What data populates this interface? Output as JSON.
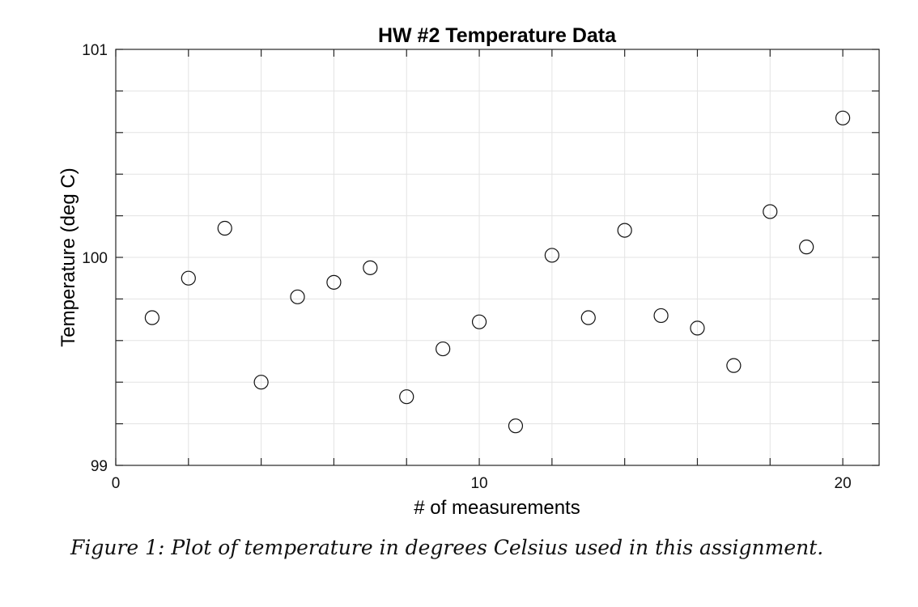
{
  "chart_data": {
    "type": "scatter",
    "title": "HW #2 Temperature Data",
    "xlabel": "# of measurements",
    "ylabel": "Temperature (deg C)",
    "xlim": [
      0,
      21
    ],
    "ylim": [
      99,
      101
    ],
    "xticks": [
      0,
      2,
      4,
      6,
      8,
      10,
      12,
      14,
      16,
      18,
      20
    ],
    "xtick_labels": [
      "0",
      "",
      "",
      "",
      "",
      "10",
      "",
      "",
      "",
      "",
      "20"
    ],
    "yticks": [
      99,
      99.2,
      99.4,
      99.6,
      99.8,
      100,
      100.2,
      100.4,
      100.6,
      100.8,
      101
    ],
    "ytick_labels": [
      "99",
      "",
      "",
      "",
      "",
      "100",
      "",
      "",
      "",
      "",
      "101"
    ],
    "grid": true,
    "marker": "open-circle",
    "x": [
      1,
      2,
      3,
      4,
      5,
      6,
      7,
      8,
      9,
      10,
      11,
      12,
      13,
      14,
      15,
      16,
      17,
      18,
      19,
      20
    ],
    "y": [
      99.71,
      99.9,
      100.14,
      99.4,
      99.81,
      99.88,
      99.95,
      99.33,
      99.56,
      99.69,
      99.19,
      100.01,
      99.71,
      100.13,
      99.72,
      99.66,
      99.48,
      100.22,
      100.05,
      100.67
    ]
  },
  "caption": "Figure 1: Plot of temperature in degrees Celsius used in this assignment."
}
